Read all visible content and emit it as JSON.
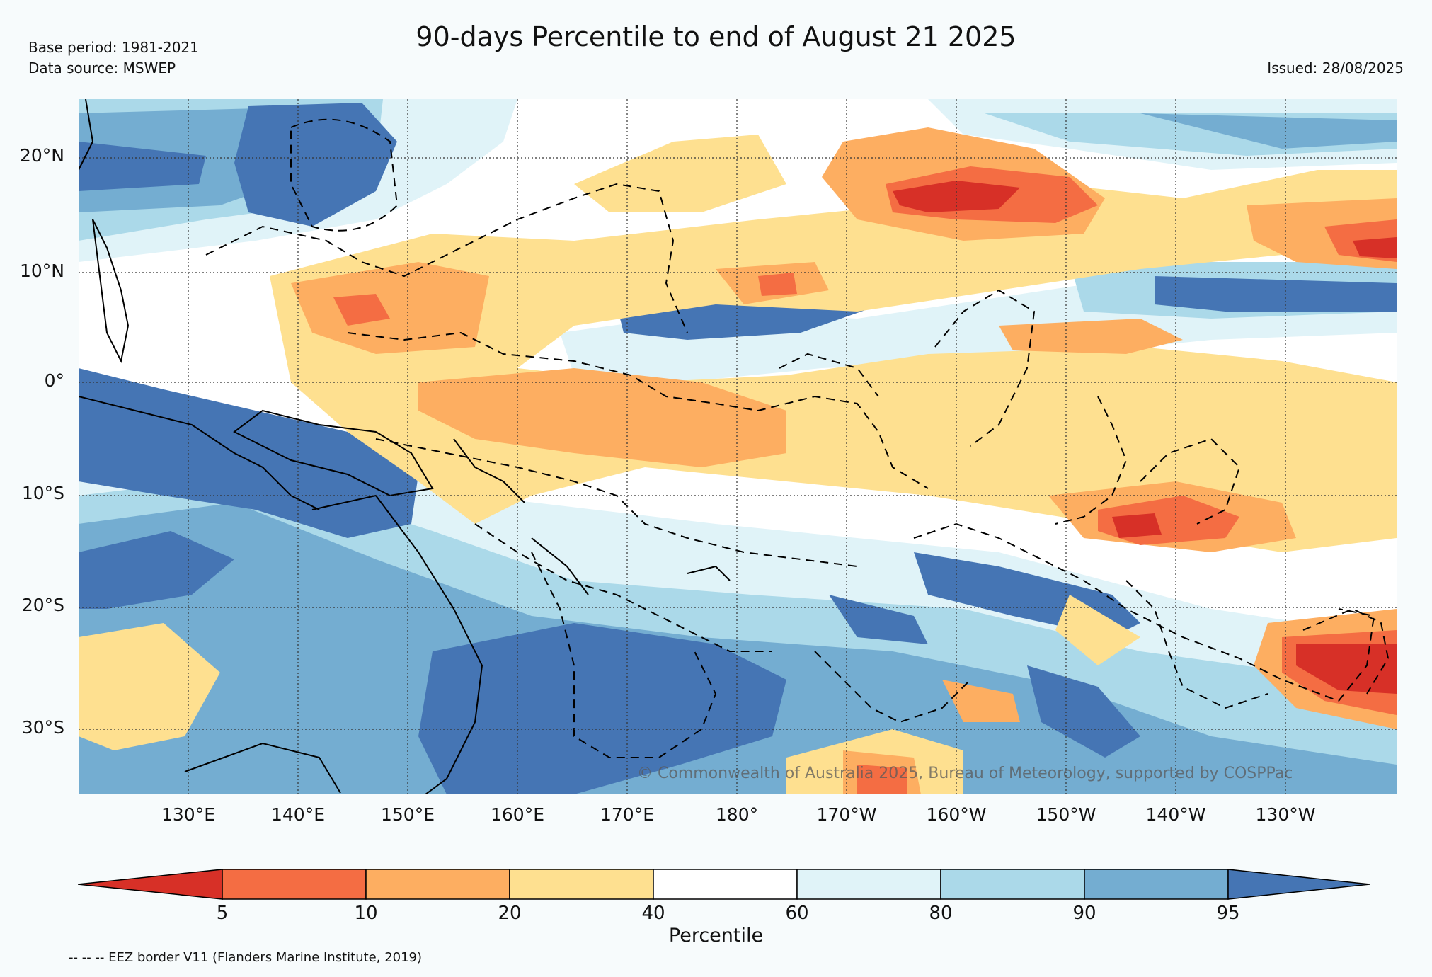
{
  "header": {
    "title": "90-days Percentile to end of August 21 2025",
    "base_period": "Base period: 1981-2021",
    "data_source": "Data source: MSWEP",
    "issued": "Issued: 28/08/2025"
  },
  "map": {
    "lat_labels": [
      "20°N",
      "10°N",
      "0°",
      "10°S",
      "20°S",
      "30°S"
    ],
    "lon_labels": [
      "130°E",
      "140°E",
      "150°E",
      "160°E",
      "170°E",
      "180°",
      "170°W",
      "160°W",
      "150°W",
      "140°W",
      "130°W"
    ],
    "copyright": "© Commonwealth of Australia 2025, Bureau of Meteorology, supported by COSPPac",
    "colors": {
      "p_below_5": "#d73027",
      "p_5_10": "#f46d43",
      "p_10_20": "#fdae61",
      "p_20_40": "#fee090",
      "p_40_60": "#ffffff",
      "p_60_80": "#e0f3f8",
      "p_80_90": "#abd9e9",
      "p_90_95": "#74add1",
      "p_above_95": "#4575b4"
    }
  },
  "colorbar": {
    "ticks": [
      "5",
      "10",
      "20",
      "40",
      "60",
      "80",
      "90",
      "95"
    ],
    "label": "Percentile"
  },
  "footer": {
    "eez_note": "-- -- -- EEZ border V11 (Flanders Marine Institute, 2019)"
  }
}
